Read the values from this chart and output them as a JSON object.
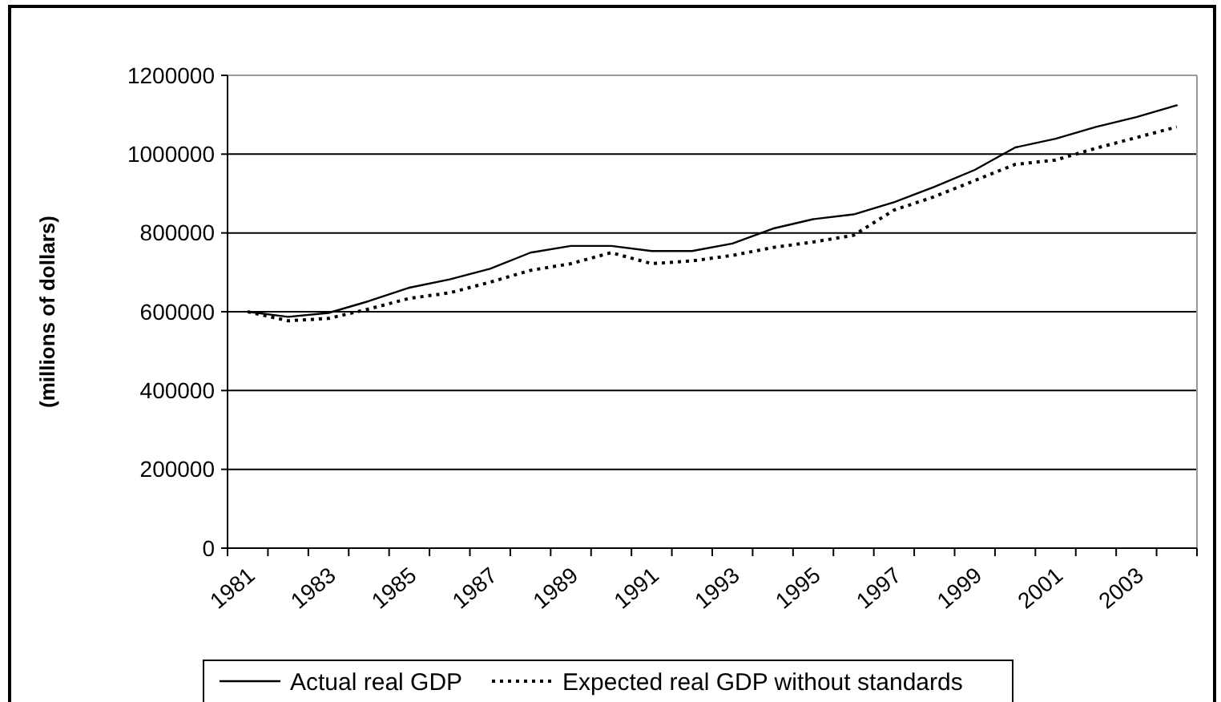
{
  "chart_data": {
    "type": "line",
    "ylabel": "(millions of dollars)",
    "categories": [
      "1981",
      null,
      "1983",
      null,
      "1985",
      null,
      "1987",
      null,
      "1989",
      null,
      "1991",
      null,
      "1993",
      null,
      "1995",
      null,
      "1997",
      null,
      "1999",
      null,
      "2001",
      null,
      "2003",
      null
    ],
    "series": [
      {
        "name": "Actual real GDP",
        "color": "#000000",
        "line_style": "solid",
        "values": [
          600000,
          587000,
          597000,
          627000,
          661000,
          682000,
          709000,
          750000,
          767000,
          767000,
          754000,
          754000,
          773000,
          811000,
          835000,
          847000,
          878000,
          917000,
          960000,
          1017000,
          1039000,
          1069000,
          1094000,
          1124000
        ]
      },
      {
        "name": "Expected real GDP without standards",
        "color": "#000000",
        "line_style": "dotted",
        "values": [
          600000,
          577000,
          583000,
          607000,
          634000,
          648000,
          675000,
          705000,
          722000,
          750000,
          722000,
          729000,
          743000,
          763000,
          777000,
          794000,
          858000,
          892000,
          933000,
          974000,
          985000,
          1015000,
          1042000,
          1069000
        ]
      }
    ],
    "ylim": [
      0,
      1200000
    ],
    "yticks": [
      0,
      200000,
      400000,
      600000,
      800000,
      1000000,
      1200000
    ],
    "grid": "y",
    "legend": "bottom",
    "marker": "none"
  }
}
